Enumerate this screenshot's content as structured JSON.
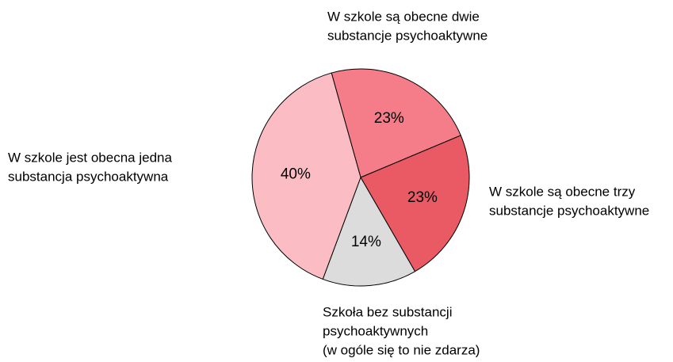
{
  "chart_data": {
    "type": "pie",
    "categories": [
      [
        "W szkole są obecne dwie",
        "substancje psychoaktywne"
      ],
      [
        "W szkole są obecne trzy",
        "substancje psychoaktywne"
      ],
      [
        "Szkoła bez substancji",
        "psychoaktywnych",
        "(w ogóle się to nie zdarza)"
      ],
      [
        "W szkole jest obecna jedna",
        "substancja psychoaktywna"
      ]
    ],
    "values": [
      23,
      23,
      14,
      40
    ],
    "value_labels": [
      "23%",
      "23%",
      "14%",
      "40%"
    ],
    "colors": [
      "#f47d89",
      "#e95a65",
      "#dcdcdc",
      "#fbbdc3"
    ]
  }
}
